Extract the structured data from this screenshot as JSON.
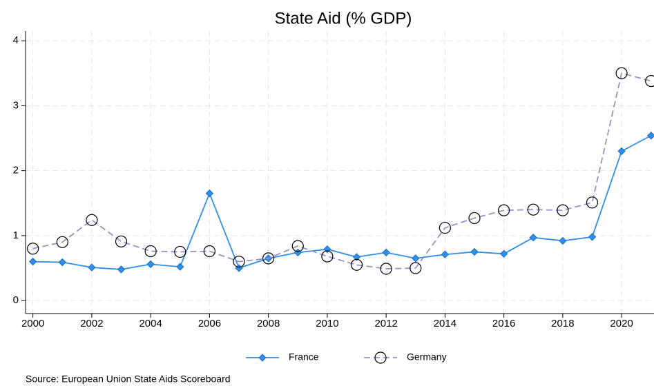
{
  "chart_data": {
    "type": "line",
    "title": "State Aid (% GDP)",
    "x": [
      2000,
      2001,
      2002,
      2003,
      2004,
      2005,
      2006,
      2007,
      2008,
      2009,
      2010,
      2011,
      2012,
      2013,
      2014,
      2015,
      2016,
      2017,
      2018,
      2019,
      2020,
      2021
    ],
    "series": [
      {
        "name": "France",
        "color": "#2f8ee8",
        "marker": "diamond",
        "dash": false,
        "values": [
          0.6,
          0.59,
          0.51,
          0.48,
          0.56,
          0.52,
          1.65,
          0.5,
          0.65,
          0.74,
          0.79,
          0.67,
          0.74,
          0.65,
          0.71,
          0.75,
          0.72,
          0.97,
          0.92,
          0.98,
          2.3,
          2.54
        ]
      },
      {
        "name": "Germany",
        "color": "#9e8ec8",
        "marker": "circle",
        "dash": true,
        "values": [
          0.8,
          0.9,
          1.24,
          0.91,
          0.76,
          0.75,
          0.76,
          0.6,
          0.65,
          0.84,
          0.68,
          0.55,
          0.49,
          0.5,
          1.12,
          1.27,
          1.39,
          1.4,
          1.39,
          1.51,
          3.5,
          3.38
        ]
      }
    ],
    "xlim": [
      1999.75,
      2021.1
    ],
    "xticks": [
      2000,
      2002,
      2004,
      2006,
      2008,
      2010,
      2012,
      2014,
      2016,
      2018,
      2020
    ],
    "ylim": [
      -0.2,
      4.15
    ],
    "yticks": [
      0,
      1,
      2,
      3,
      4
    ],
    "grid": true,
    "legend": "bottom",
    "note": "Source: European Union State Aids Scoreboard"
  }
}
